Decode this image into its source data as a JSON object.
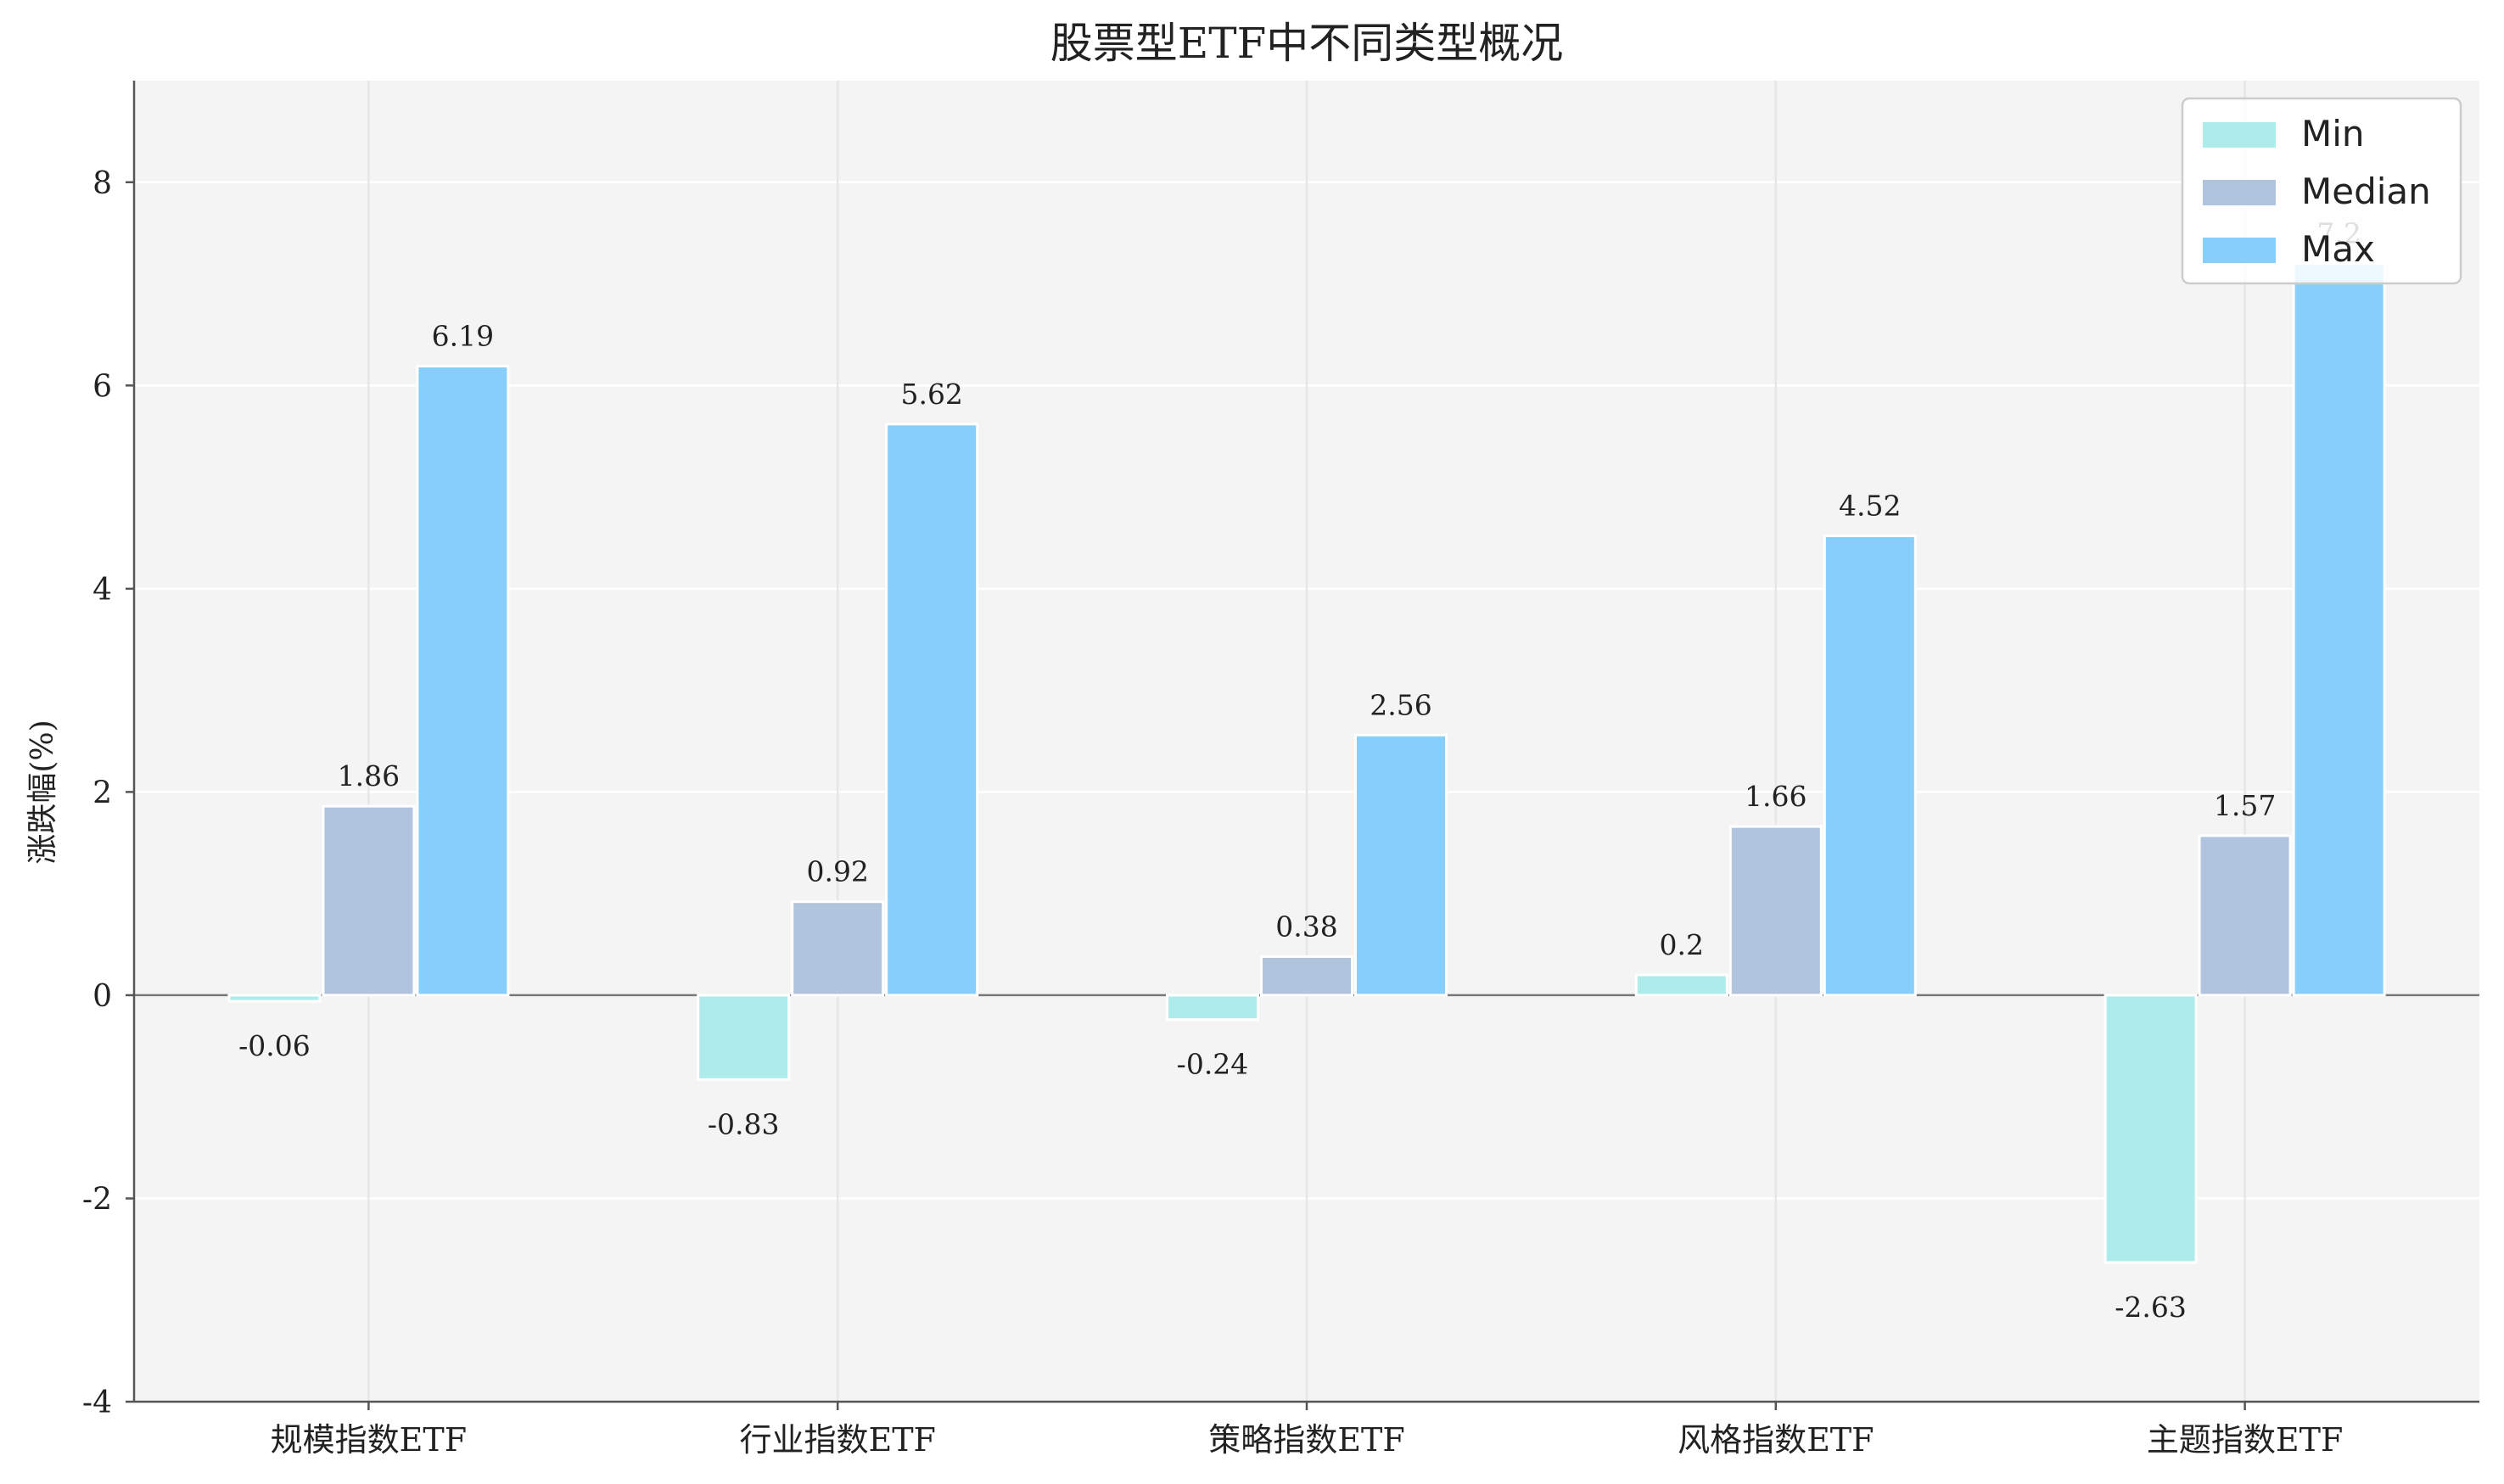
{
  "chart_data": {
    "type": "bar",
    "title": "股票型ETF中不同类型概况",
    "ylabel": "涨跌幅(%)",
    "xlabel": "",
    "ylim": [
      -4,
      9
    ],
    "yticks": [
      -4,
      -2,
      0,
      2,
      4,
      6,
      8
    ],
    "ytick_labels": [
      "-4",
      "-2",
      "0",
      "2",
      "4",
      "6",
      "8"
    ],
    "categories": [
      "规模指数ETF",
      "行业指数ETF",
      "策略指数ETF",
      "风格指数ETF",
      "主题指数ETF"
    ],
    "series": [
      {
        "name": "Min",
        "color": "#aeeceb",
        "values": [
          -0.06,
          -0.83,
          -0.24,
          0.2,
          -2.63
        ],
        "labels": [
          "-0.06",
          "-0.83",
          "-0.24",
          "0.2",
          "-2.63"
        ]
      },
      {
        "name": "Median",
        "color": "#b0c4de",
        "values": [
          1.86,
          0.92,
          0.38,
          1.66,
          1.57
        ],
        "labels": [
          "1.86",
          "0.92",
          "0.38",
          "1.66",
          "1.57"
        ]
      },
      {
        "name": "Max",
        "color": "#87cefa",
        "values": [
          6.19,
          5.62,
          2.56,
          4.52,
          7.2
        ],
        "labels": [
          "6.19",
          "5.62",
          "2.56",
          "4.52",
          "7.2"
        ]
      }
    ],
    "grid": true,
    "legend_position": "top-right",
    "background_color": "#f4f4f4",
    "zero_line_color": "#777777"
  }
}
